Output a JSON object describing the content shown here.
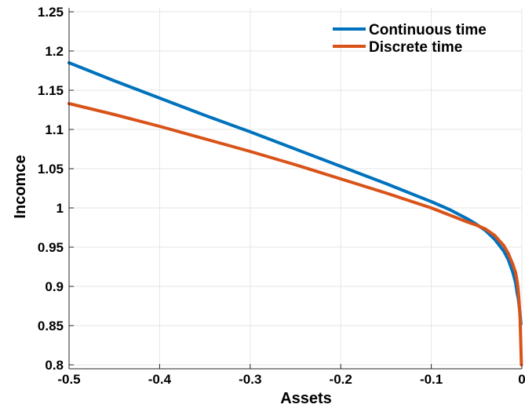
{
  "chart_data": {
    "type": "line",
    "xlabel": "Assets",
    "ylabel": "Incomce",
    "xlim": [
      -0.5,
      0
    ],
    "ylim": [
      0.795,
      1.255
    ],
    "xticks": [
      -0.5,
      -0.4,
      -0.3,
      -0.2,
      -0.1,
      0
    ],
    "xtick_labels": [
      "-0.5",
      "-0.4",
      "-0.3",
      "-0.2",
      "-0.1",
      "0"
    ],
    "yticks": [
      0.8,
      0.85,
      0.9,
      0.95,
      1,
      1.05,
      1.1,
      1.15,
      1.2,
      1.25
    ],
    "ytick_labels": [
      "0.8",
      "0.85",
      "0.9",
      "0.95",
      "1",
      "1.05",
      "1.1",
      "1.15",
      "1.2",
      "1.25"
    ],
    "grid": true,
    "legend_position": "top-right",
    "series": [
      {
        "name": "Continuous time",
        "color": "#0072BD",
        "x": [
          -0.5,
          -0.45,
          -0.4,
          -0.35,
          -0.3,
          -0.25,
          -0.2,
          -0.15,
          -0.1,
          -0.08,
          -0.06,
          -0.05,
          -0.04,
          -0.03,
          -0.02,
          -0.015,
          -0.01,
          -0.007,
          -0.005,
          -0.004,
          -0.003,
          -0.002,
          -0.001
        ],
        "y": [
          1.185,
          1.162,
          1.14,
          1.118,
          1.097,
          1.075,
          1.053,
          1.031,
          1.008,
          0.998,
          0.986,
          0.979,
          0.971,
          0.96,
          0.945,
          0.934,
          0.918,
          0.905,
          0.89,
          0.885,
          0.875,
          0.865,
          0.852
        ]
      },
      {
        "name": "Discrete time",
        "color": "#D95319",
        "x": [
          -0.5,
          -0.45,
          -0.4,
          -0.35,
          -0.3,
          -0.25,
          -0.2,
          -0.15,
          -0.1,
          -0.08,
          -0.06,
          -0.05,
          -0.04,
          -0.03,
          -0.02,
          -0.015,
          -0.01,
          -0.007,
          -0.005,
          -0.004,
          -0.003,
          -0.002,
          -0.001,
          -0.0005
        ],
        "y": [
          1.133,
          1.119,
          1.104,
          1.088,
          1.072,
          1.055,
          1.037,
          1.019,
          1.0,
          0.991,
          0.982,
          0.978,
          0.973,
          0.965,
          0.952,
          0.942,
          0.928,
          0.918,
          0.905,
          0.895,
          0.88,
          0.86,
          0.82,
          0.8
        ]
      }
    ]
  }
}
